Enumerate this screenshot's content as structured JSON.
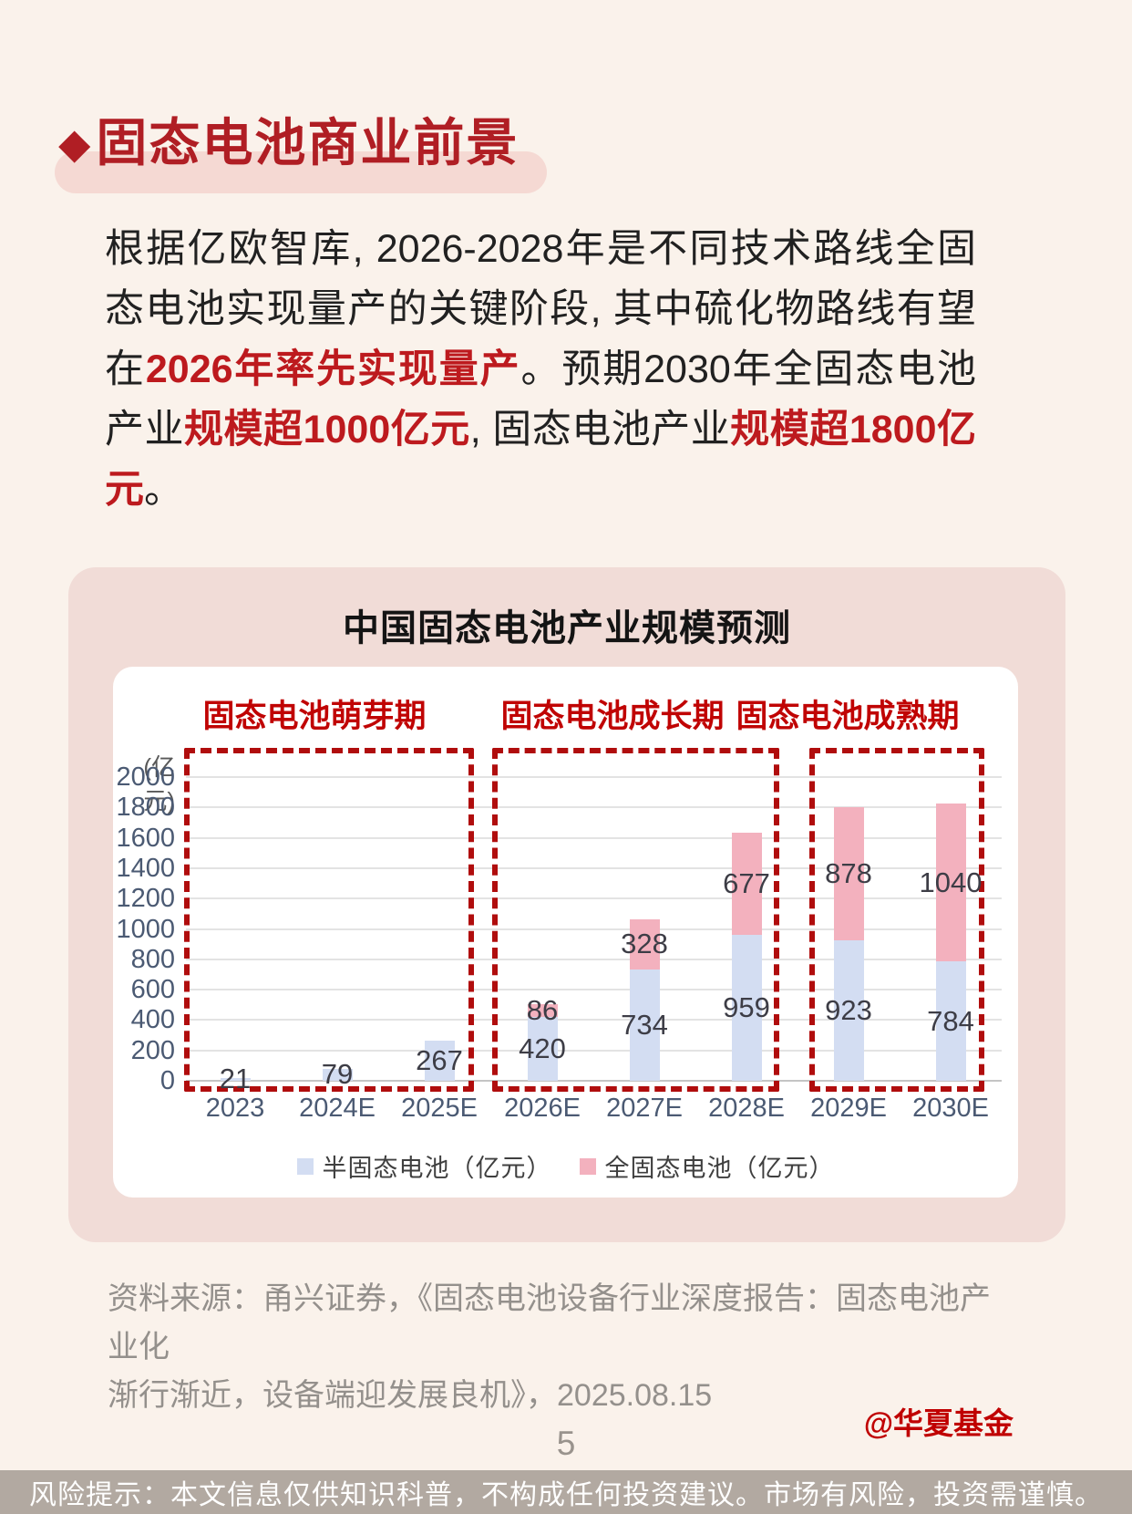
{
  "page": {
    "title": {
      "bullet": "◆",
      "text": "固态电池商业前景"
    },
    "paragraph_segments": [
      {
        "text": "根据亿欧智库, 2026-2028年是不同技术路线全固态电池实现量产的关键阶段, 其中硫化物路线有望在",
        "emphasis": false
      },
      {
        "text": "2026年率先实现量产",
        "emphasis": true
      },
      {
        "text": "。预期2030年全固态电池产业",
        "emphasis": false
      },
      {
        "text": "规模超1000亿元",
        "emphasis": true
      },
      {
        "text": ", 固态电池产业",
        "emphasis": false
      },
      {
        "text": "规模超1800亿元",
        "emphasis": true
      },
      {
        "text": "。",
        "emphasis": false
      }
    ],
    "source_line1": "资料来源：甬兴证券，《固态电池设备行业深度报告：固态电池产业化",
    "source_line2": "渐行渐近，设备端迎发展良机》，2025.08.15",
    "watermark": "@华夏基金",
    "page_number": "5",
    "footer": "风险提示：本文信息仅供知识科普，不构成任何投资建议。市场有风险，投资需谨慎。"
  },
  "chart_data": {
    "type": "bar",
    "stacked": true,
    "title": "中国固态电池产业规模预测",
    "unit_label": "(亿元)",
    "categories": [
      "2023",
      "2024E",
      "2025E",
      "2026E",
      "2027E",
      "2028E",
      "2029E",
      "2030E"
    ],
    "series": [
      {
        "name": "半固态电池（亿元）",
        "color": "#d3ddf2",
        "values": [
          21,
          79,
          267,
          420,
          734,
          959,
          923,
          784
        ]
      },
      {
        "name": "全固态电池（亿元）",
        "color": "#f3b1be",
        "values": [
          0,
          0,
          0,
          86,
          328,
          677,
          878,
          1040
        ]
      }
    ],
    "ylim": [
      0,
      2000
    ],
    "ytick_step": 200,
    "grid": true,
    "legend_position": "bottom",
    "phases": [
      {
        "label": "固态电池萌芽期",
        "categories": [
          "2023",
          "2024E",
          "2025E"
        ]
      },
      {
        "label": "固态电池成长期",
        "categories": [
          "2026E",
          "2027E",
          "2028E"
        ]
      },
      {
        "label": "固态电池成熟期",
        "categories": [
          "2029E",
          "2030E"
        ]
      }
    ]
  },
  "colors": {
    "page_bg": "#faf2eb",
    "accent_red": "#b01e24",
    "emphasis_red": "#bd1a1e",
    "phase_red": "#c00404",
    "dashed_border": "#b00d0d",
    "card_pink": "#f1dcd7",
    "highlight_band": "#f5d9d3",
    "bar_semi_blue": "#d3ddf2",
    "bar_full_pink": "#f3b1be",
    "footer_bg": "#b2a9a1",
    "watermark_red": "#c00000"
  }
}
